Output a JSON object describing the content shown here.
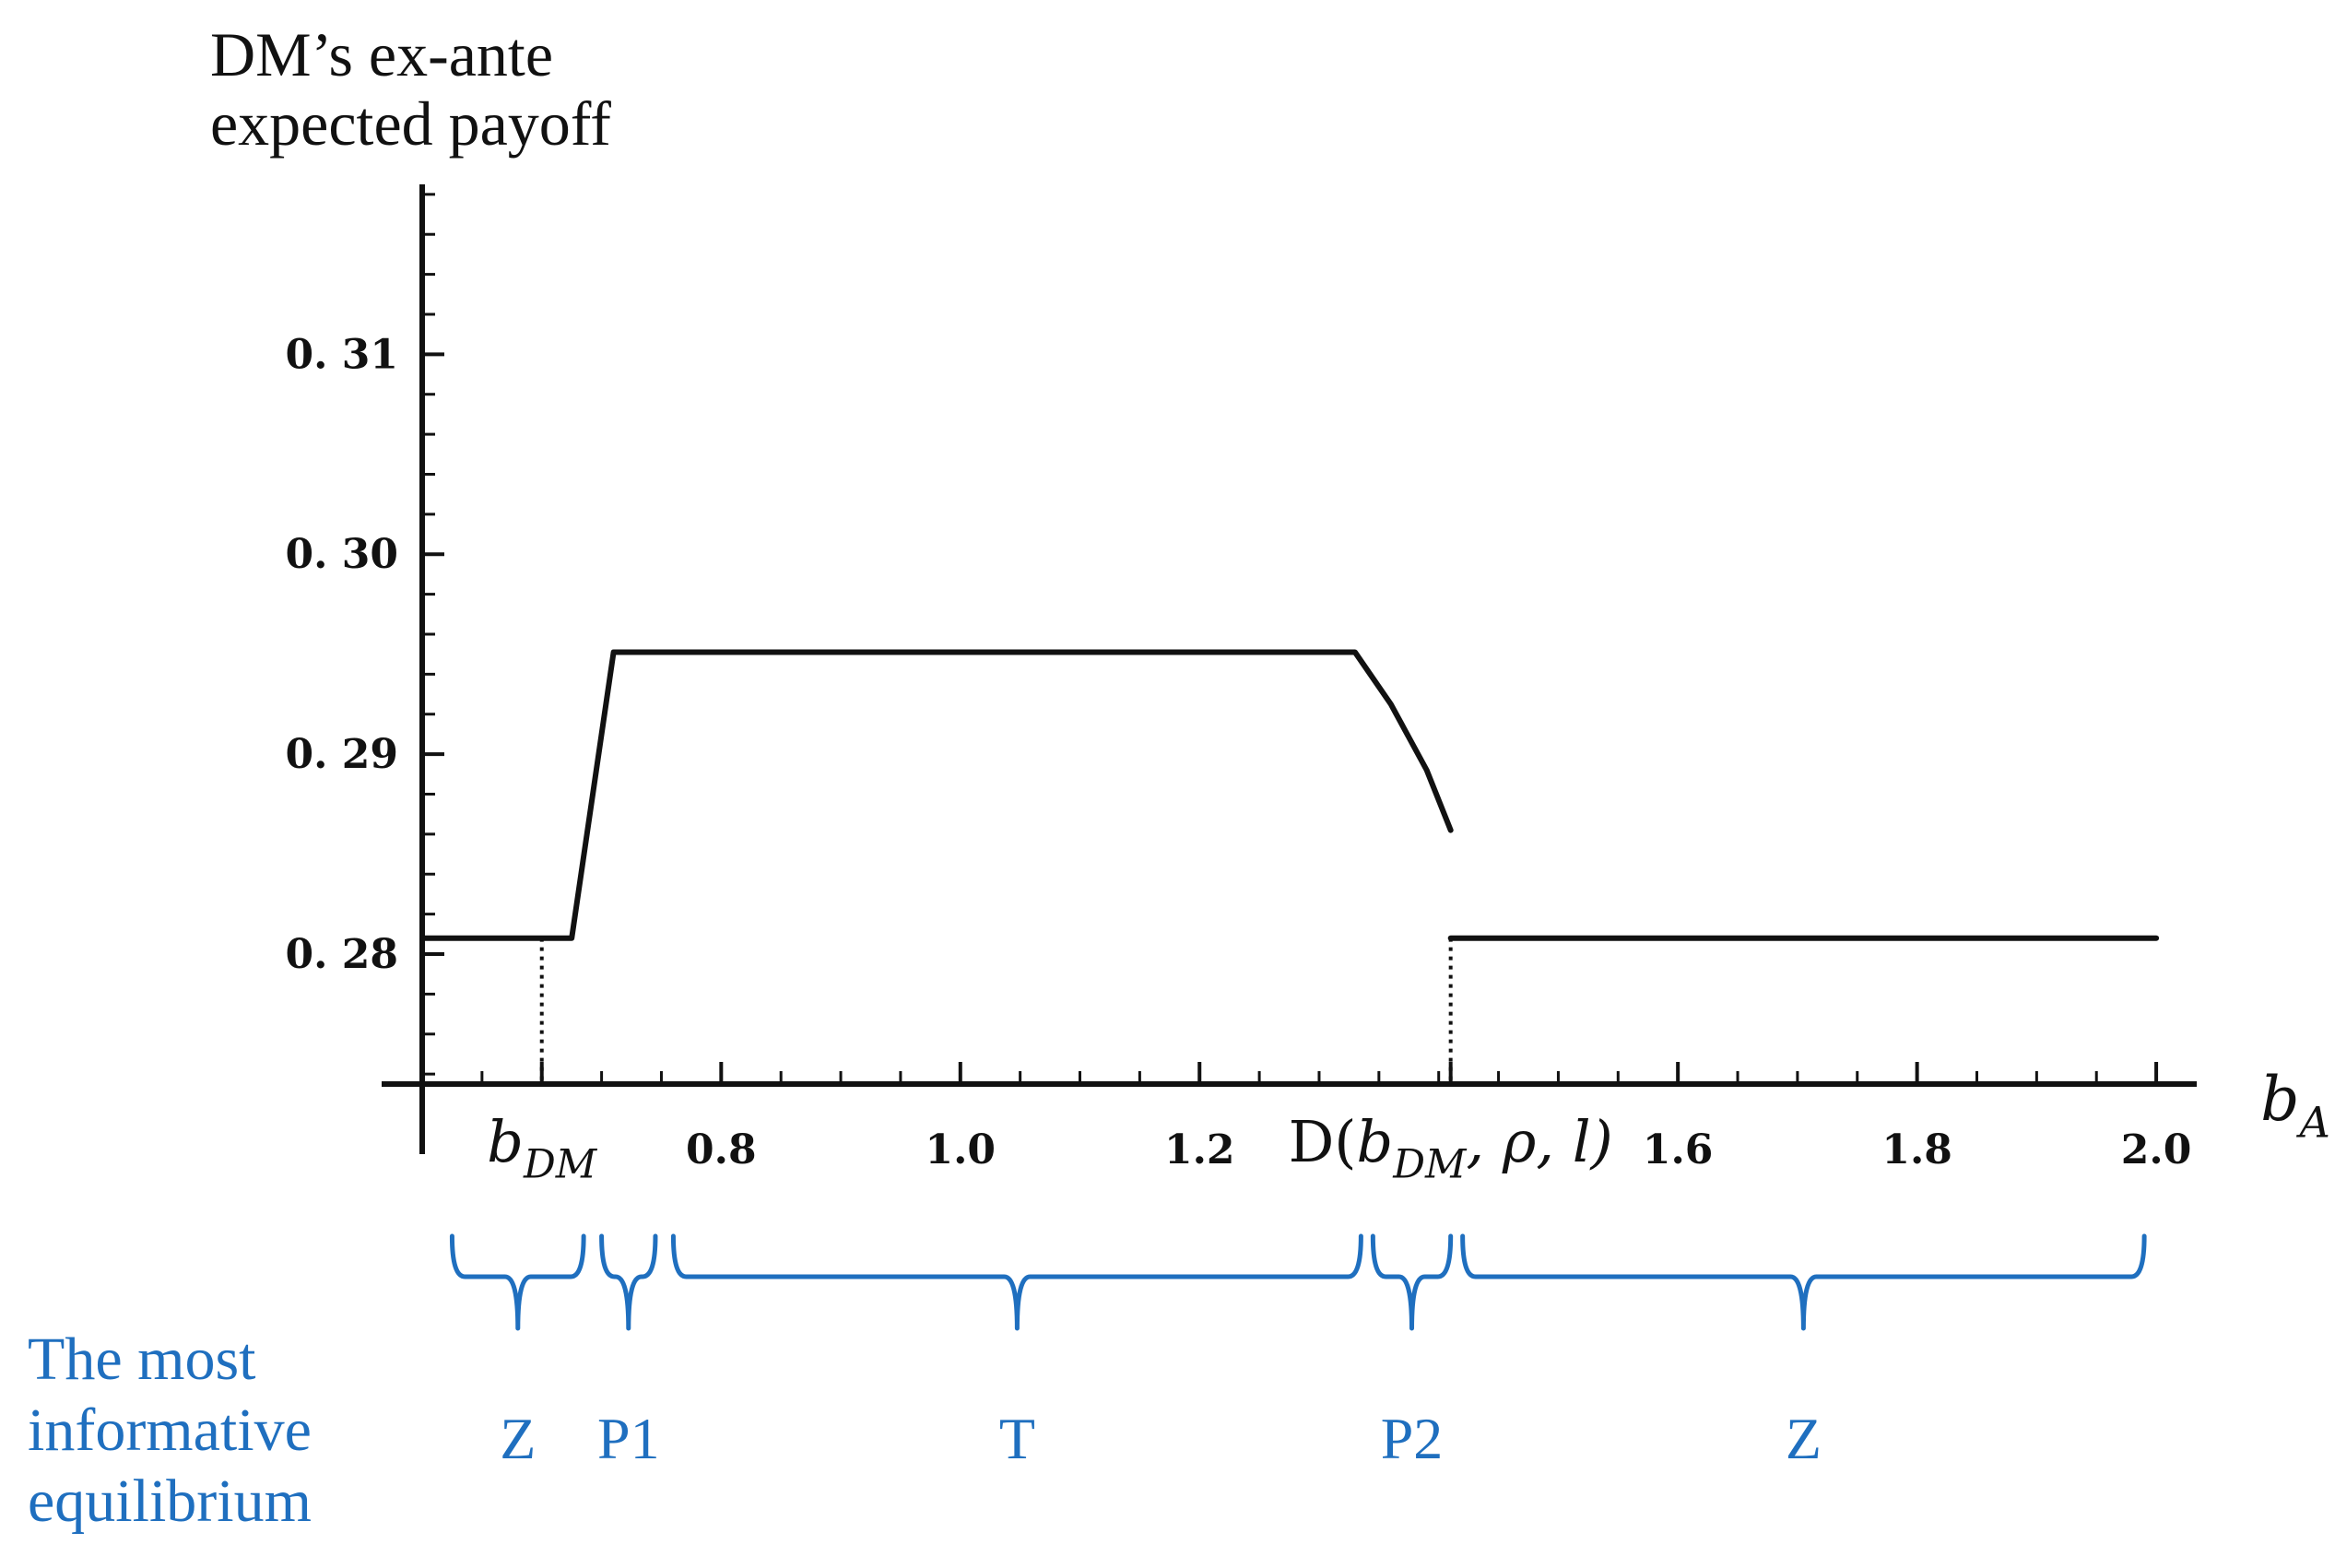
{
  "chart_data": {
    "type": "line",
    "title": "",
    "ylabel_lines": [
      "DM’s ex-ante",
      "expected payoff"
    ],
    "xlabel": {
      "base": "b",
      "sub": "A"
    },
    "xlim": [
      0.55,
      2.03
    ],
    "ylim": [
      0.2735,
      0.3185
    ],
    "x_ticks": [
      {
        "value": 0.65,
        "math": true,
        "base": "b",
        "sub": "DM"
      },
      {
        "value": 0.8,
        "label": "0.8"
      },
      {
        "value": 1.0,
        "label": "1.0"
      },
      {
        "value": 1.2,
        "label": "1.2"
      },
      {
        "value": 1.41,
        "math": true,
        "prefix": "D(",
        "base": "b",
        "sub": "DM",
        "suffix": ", ρ, l)"
      },
      {
        "value": 1.6,
        "label": "1.6"
      },
      {
        "value": 1.8,
        "label": "1.8"
      },
      {
        "value": 2.0,
        "label": "2.0"
      }
    ],
    "y_ticks": [
      {
        "value": 0.28,
        "label": "0. 28"
      },
      {
        "value": 0.29,
        "label": "0. 29"
      },
      {
        "value": 0.3,
        "label": "0. 30"
      },
      {
        "value": 0.31,
        "label": "0. 31"
      }
    ],
    "series": [
      {
        "x": [
          0.55,
          0.65,
          0.675,
          0.71,
          1.0,
          1.2,
          1.33,
          1.36,
          1.39,
          1.41
        ],
        "y": [
          0.2808,
          0.2808,
          0.2808,
          0.2951,
          0.2951,
          0.2951,
          0.2951,
          0.2925,
          0.2892,
          0.2862
        ]
      },
      {
        "x": [
          1.41,
          1.6,
          1.8,
          2.0
        ],
        "y": [
          0.2808,
          0.2808,
          0.2808,
          0.2808
        ]
      }
    ],
    "reference_lines": [
      {
        "x": 0.65,
        "y": 0.2808
      },
      {
        "x": 1.41,
        "y": 0.2808
      }
    ],
    "regions": [
      {
        "label": "Z",
        "from": 0.575,
        "to": 0.685
      },
      {
        "label": "P1",
        "from": 0.7,
        "to": 0.745
      },
      {
        "label": "T",
        "from": 0.76,
        "to": 1.335
      },
      {
        "label": "P2",
        "from": 1.345,
        "to": 1.41
      },
      {
        "label": "Z",
        "from": 1.42,
        "to": 1.99
      }
    ],
    "regions_caption": [
      "The most",
      "informative",
      "equilibrium"
    ],
    "colors": {
      "curve": "#111111",
      "brace": "#1f6fbf"
    }
  }
}
